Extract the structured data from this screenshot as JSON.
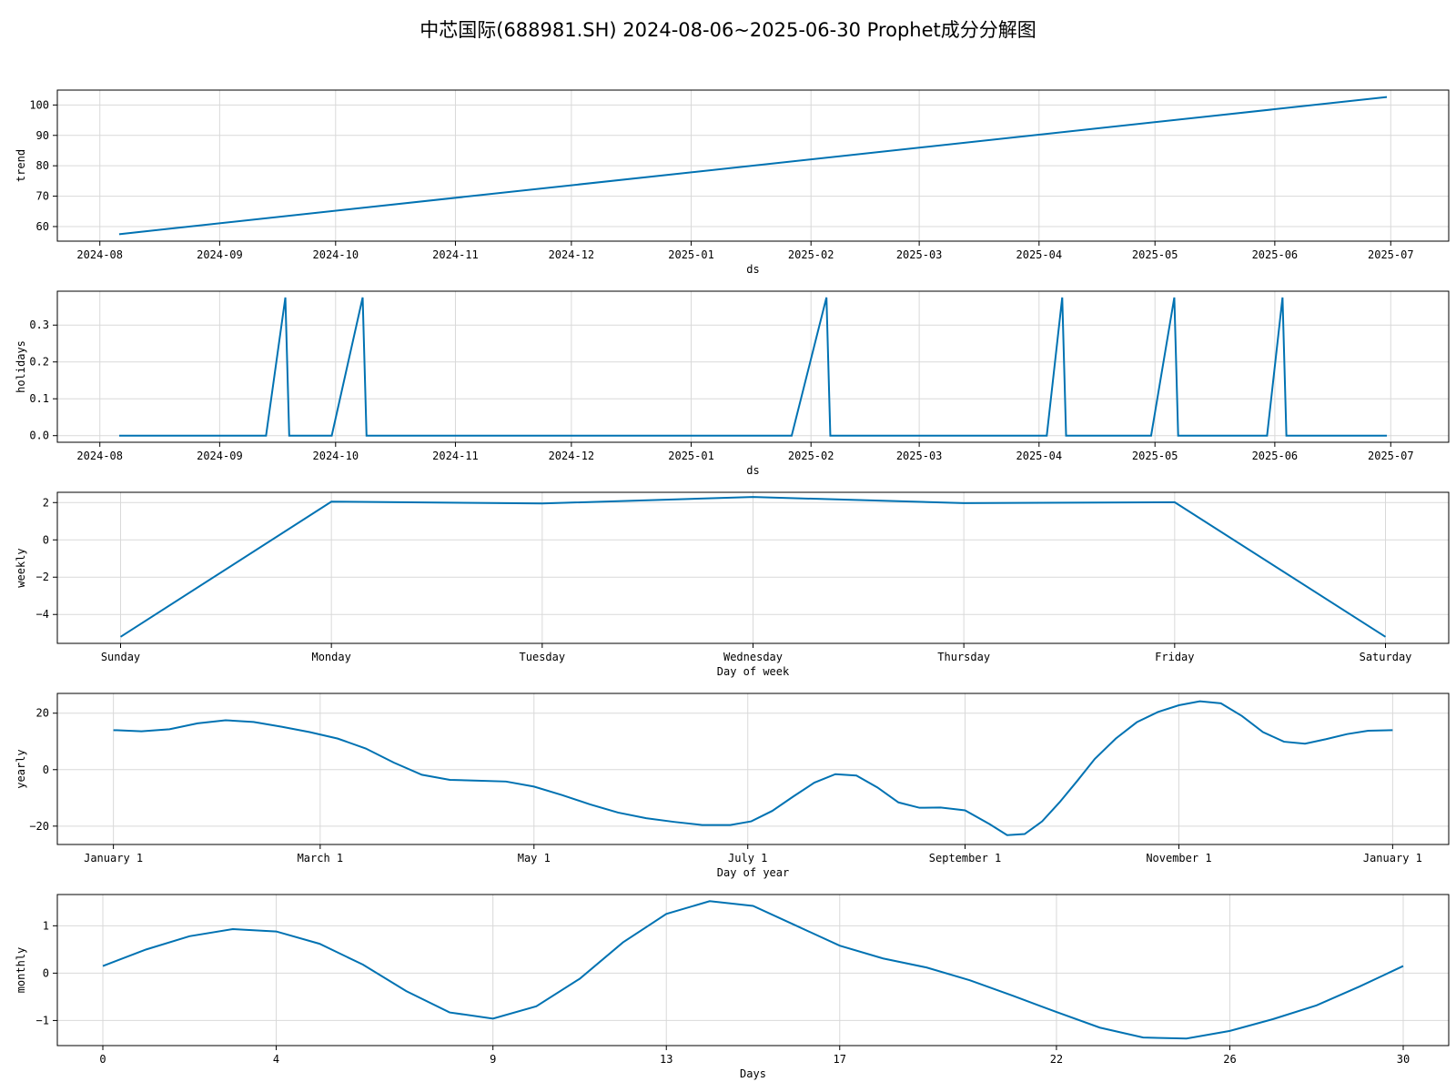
{
  "title": "中芯国际(688981.SH) 2024-08-06~2025-06-30 Prophet成分分解图",
  "colors": {
    "line": "#0072b2",
    "grid": "#d9d9d9"
  },
  "chart_data": [
    {
      "type": "line",
      "ylabel": "trend",
      "xlabel": "ds",
      "x_kind": "date",
      "xlim": [
        "2024-07-21",
        "2025-07-16"
      ],
      "ylim": [
        55.2,
        104.9
      ],
      "xticks": [
        "2024-08-01",
        "2024-09-01",
        "2024-10-01",
        "2024-11-01",
        "2024-12-01",
        "2025-01-01",
        "2025-02-01",
        "2025-03-01",
        "2025-04-01",
        "2025-05-01",
        "2025-06-01",
        "2025-07-01"
      ],
      "xtick_labels": [
        "2024-08",
        "2024-09",
        "2024-10",
        "2024-11",
        "2024-12",
        "2025-01",
        "2025-02",
        "2025-03",
        "2025-04",
        "2025-05",
        "2025-06",
        "2025-07"
      ],
      "yticks": [
        60,
        70,
        80,
        90,
        100
      ],
      "ytick_labels": [
        "60",
        "70",
        "80",
        "90",
        "100"
      ],
      "series": [
        {
          "x": [
            "2024-08-06",
            "2025-06-30"
          ],
          "y": [
            57.5,
            102.6
          ]
        }
      ]
    },
    {
      "type": "line",
      "ylabel": "holidays",
      "xlabel": "ds",
      "x_kind": "date",
      "xlim": [
        "2024-07-21",
        "2025-07-16"
      ],
      "ylim": [
        -0.018,
        0.392
      ],
      "xticks": [
        "2024-08-01",
        "2024-09-01",
        "2024-10-01",
        "2024-11-01",
        "2024-12-01",
        "2025-01-01",
        "2025-02-01",
        "2025-03-01",
        "2025-04-01",
        "2025-05-01",
        "2025-06-01",
        "2025-07-01"
      ],
      "xtick_labels": [
        "2024-08",
        "2024-09",
        "2024-10",
        "2024-11",
        "2024-12",
        "2025-01",
        "2025-02",
        "2025-03",
        "2025-04",
        "2025-05",
        "2025-06",
        "2025-07"
      ],
      "yticks": [
        0.0,
        0.1,
        0.2,
        0.3
      ],
      "ytick_labels": [
        "0.0",
        "0.1",
        "0.2",
        "0.3"
      ],
      "series": [
        {
          "x": [
            "2024-08-06",
            "2024-09-13",
            "2024-09-18",
            "2024-09-19",
            "2024-09-30",
            "2024-10-08",
            "2024-10-09",
            "2025-01-27",
            "2025-02-05",
            "2025-02-06",
            "2025-04-03",
            "2025-04-07",
            "2025-04-08",
            "2025-04-30",
            "2025-05-06",
            "2025-05-07",
            "2025-05-30",
            "2025-06-03",
            "2025-06-04",
            "2025-06-30"
          ],
          "y": [
            0,
            0,
            0.375,
            0,
            0,
            0.375,
            0,
            0,
            0.375,
            0,
            0,
            0.375,
            0,
            0,
            0.375,
            0,
            0,
            0.375,
            0,
            0
          ]
        }
      ]
    },
    {
      "type": "line",
      "ylabel": "weekly",
      "xlabel": "Day of week",
      "x_kind": "category",
      "categories": [
        "Sunday",
        "Monday",
        "Tuesday",
        "Wednesday",
        "Thursday",
        "Friday",
        "Saturday"
      ],
      "xlim": [
        -0.3,
        6.3
      ],
      "ylim": [
        -5.55,
        2.55
      ],
      "yticks": [
        -4,
        -2,
        0,
        2
      ],
      "ytick_labels": [
        "−4",
        "−2",
        "0",
        "2"
      ],
      "series": [
        {
          "values": [
            -5.2,
            2.05,
            1.95,
            2.3,
            1.97,
            2.02,
            -5.2
          ]
        }
      ]
    },
    {
      "type": "line",
      "ylabel": "yearly",
      "xlabel": "Day of year",
      "x_kind": "numeric",
      "xlim": [
        -16,
        381
      ],
      "ylim": [
        -26.5,
        27.0
      ],
      "xticks": [
        0,
        59,
        120,
        181,
        243,
        304,
        365
      ],
      "xtick_labels": [
        "January 1",
        "March 1",
        "May 1",
        "July 1",
        "September 1",
        "November 1",
        "January 1"
      ],
      "yticks": [
        -20,
        0,
        20
      ],
      "ytick_labels": [
        "−20",
        "0",
        "20"
      ],
      "series": [
        {
          "x": [
            0,
            8,
            16,
            24,
            32,
            40,
            48,
            56,
            64,
            72,
            80,
            88,
            96,
            104,
            112,
            120,
            128,
            136,
            144,
            152,
            160,
            168,
            176,
            182,
            188,
            194,
            200,
            206,
            212,
            218,
            224,
            230,
            236,
            243,
            250,
            255,
            260,
            265,
            270,
            275,
            280,
            286,
            292,
            298,
            304,
            310,
            316,
            322,
            328,
            334,
            340,
            346,
            352,
            358,
            365
          ],
          "y": [
            14.0,
            13.6,
            14.3,
            16.4,
            17.5,
            16.9,
            15.2,
            13.3,
            11.0,
            7.5,
            2.5,
            -1.8,
            -3.6,
            -3.9,
            -4.2,
            -6.0,
            -9.0,
            -12.3,
            -15.2,
            -17.2,
            -18.5,
            -19.6,
            -19.6,
            -18.3,
            -14.6,
            -9.5,
            -4.6,
            -1.6,
            -2.1,
            -6.3,
            -11.6,
            -13.5,
            -13.4,
            -14.4,
            -19.3,
            -23.2,
            -22.8,
            -18.3,
            -11.5,
            -4.0,
            3.8,
            11.0,
            16.8,
            20.4,
            22.8,
            24.2,
            23.5,
            19.0,
            13.3,
            9.9,
            9.2,
            10.8,
            12.6,
            13.8,
            14.0
          ]
        }
      ]
    },
    {
      "type": "line",
      "ylabel": "monthly",
      "xlabel": "Days",
      "x_kind": "numeric",
      "xlim": [
        -1.05,
        31.05
      ],
      "ylim": [
        -1.53,
        1.66
      ],
      "xticks": [
        0,
        4,
        9,
        13,
        17,
        22,
        26,
        30
      ],
      "xtick_labels": [
        "0",
        "4",
        "9",
        "13",
        "17",
        "22",
        "26",
        "30"
      ],
      "yticks": [
        -1,
        0,
        1
      ],
      "ytick_labels": [
        "−1",
        "0",
        "1"
      ],
      "series": [
        {
          "x": [
            0,
            1,
            2,
            3,
            4,
            5,
            6,
            7,
            8,
            9,
            10,
            11,
            12,
            13,
            14,
            15,
            16,
            17,
            18,
            19,
            20,
            21,
            22,
            23,
            24,
            25,
            26,
            27,
            28,
            29,
            30
          ],
          "y": [
            0.15,
            0.5,
            0.78,
            0.93,
            0.88,
            0.62,
            0.18,
            -0.38,
            -0.83,
            -0.96,
            -0.7,
            -0.12,
            0.65,
            1.25,
            1.52,
            1.42,
            1.0,
            0.58,
            0.31,
            0.12,
            -0.15,
            -0.48,
            -0.82,
            -1.15,
            -1.36,
            -1.38,
            -1.22,
            -0.97,
            -0.68,
            -0.28,
            0.15
          ]
        }
      ]
    }
  ]
}
